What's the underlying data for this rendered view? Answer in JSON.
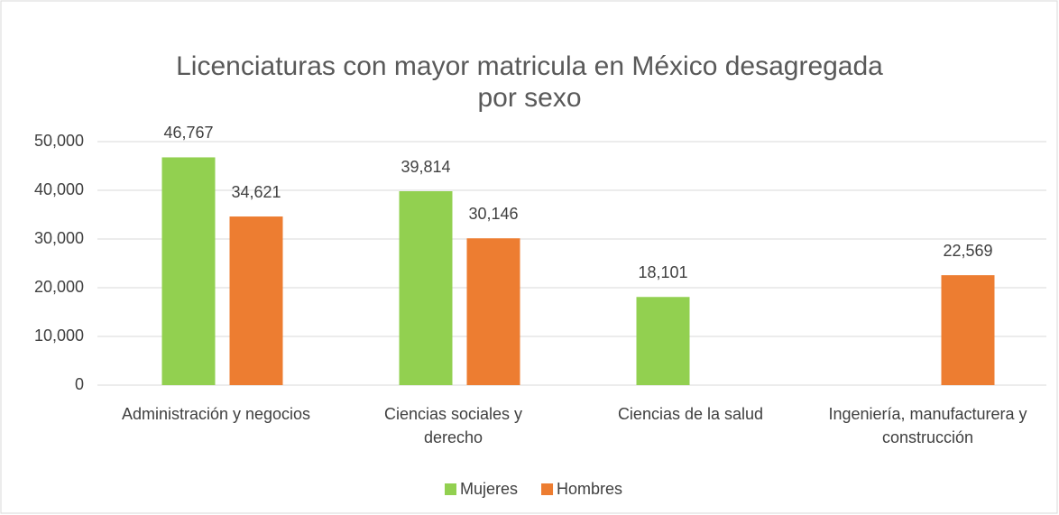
{
  "chart_data": {
    "type": "bar",
    "title": "Licenciaturas con mayor matricula en México desagregada por sexo",
    "categories": [
      "Administración y negocios",
      "Ciencias sociales y derecho",
      "Ciencias de la salud",
      "Ingeniería, manufacturera y construcción"
    ],
    "series": [
      {
        "name": "Mujeres",
        "color": "#92d050",
        "values": [
          46767,
          39814,
          18101,
          null
        ],
        "value_labels": [
          "46,767",
          "39,814",
          "18,101",
          null
        ]
      },
      {
        "name": "Hombres",
        "color": "#ed7d31",
        "values": [
          34621,
          30146,
          null,
          22569
        ],
        "value_labels": [
          "34,621",
          "30,146",
          null,
          "22,569"
        ]
      }
    ],
    "ylim": [
      0,
      50000
    ],
    "yticks": [
      0,
      {
        "value": 10000,
        "label": "10,000"
      },
      {
        "value": 20000,
        "label": "20,000"
      },
      {
        "value": 30000,
        "label": "30,000"
      },
      {
        "value": 40000,
        "label": "40,000"
      },
      {
        "value": 50000,
        "label": "50,000"
      }
    ],
    "grid": true,
    "legend": "bottom"
  }
}
